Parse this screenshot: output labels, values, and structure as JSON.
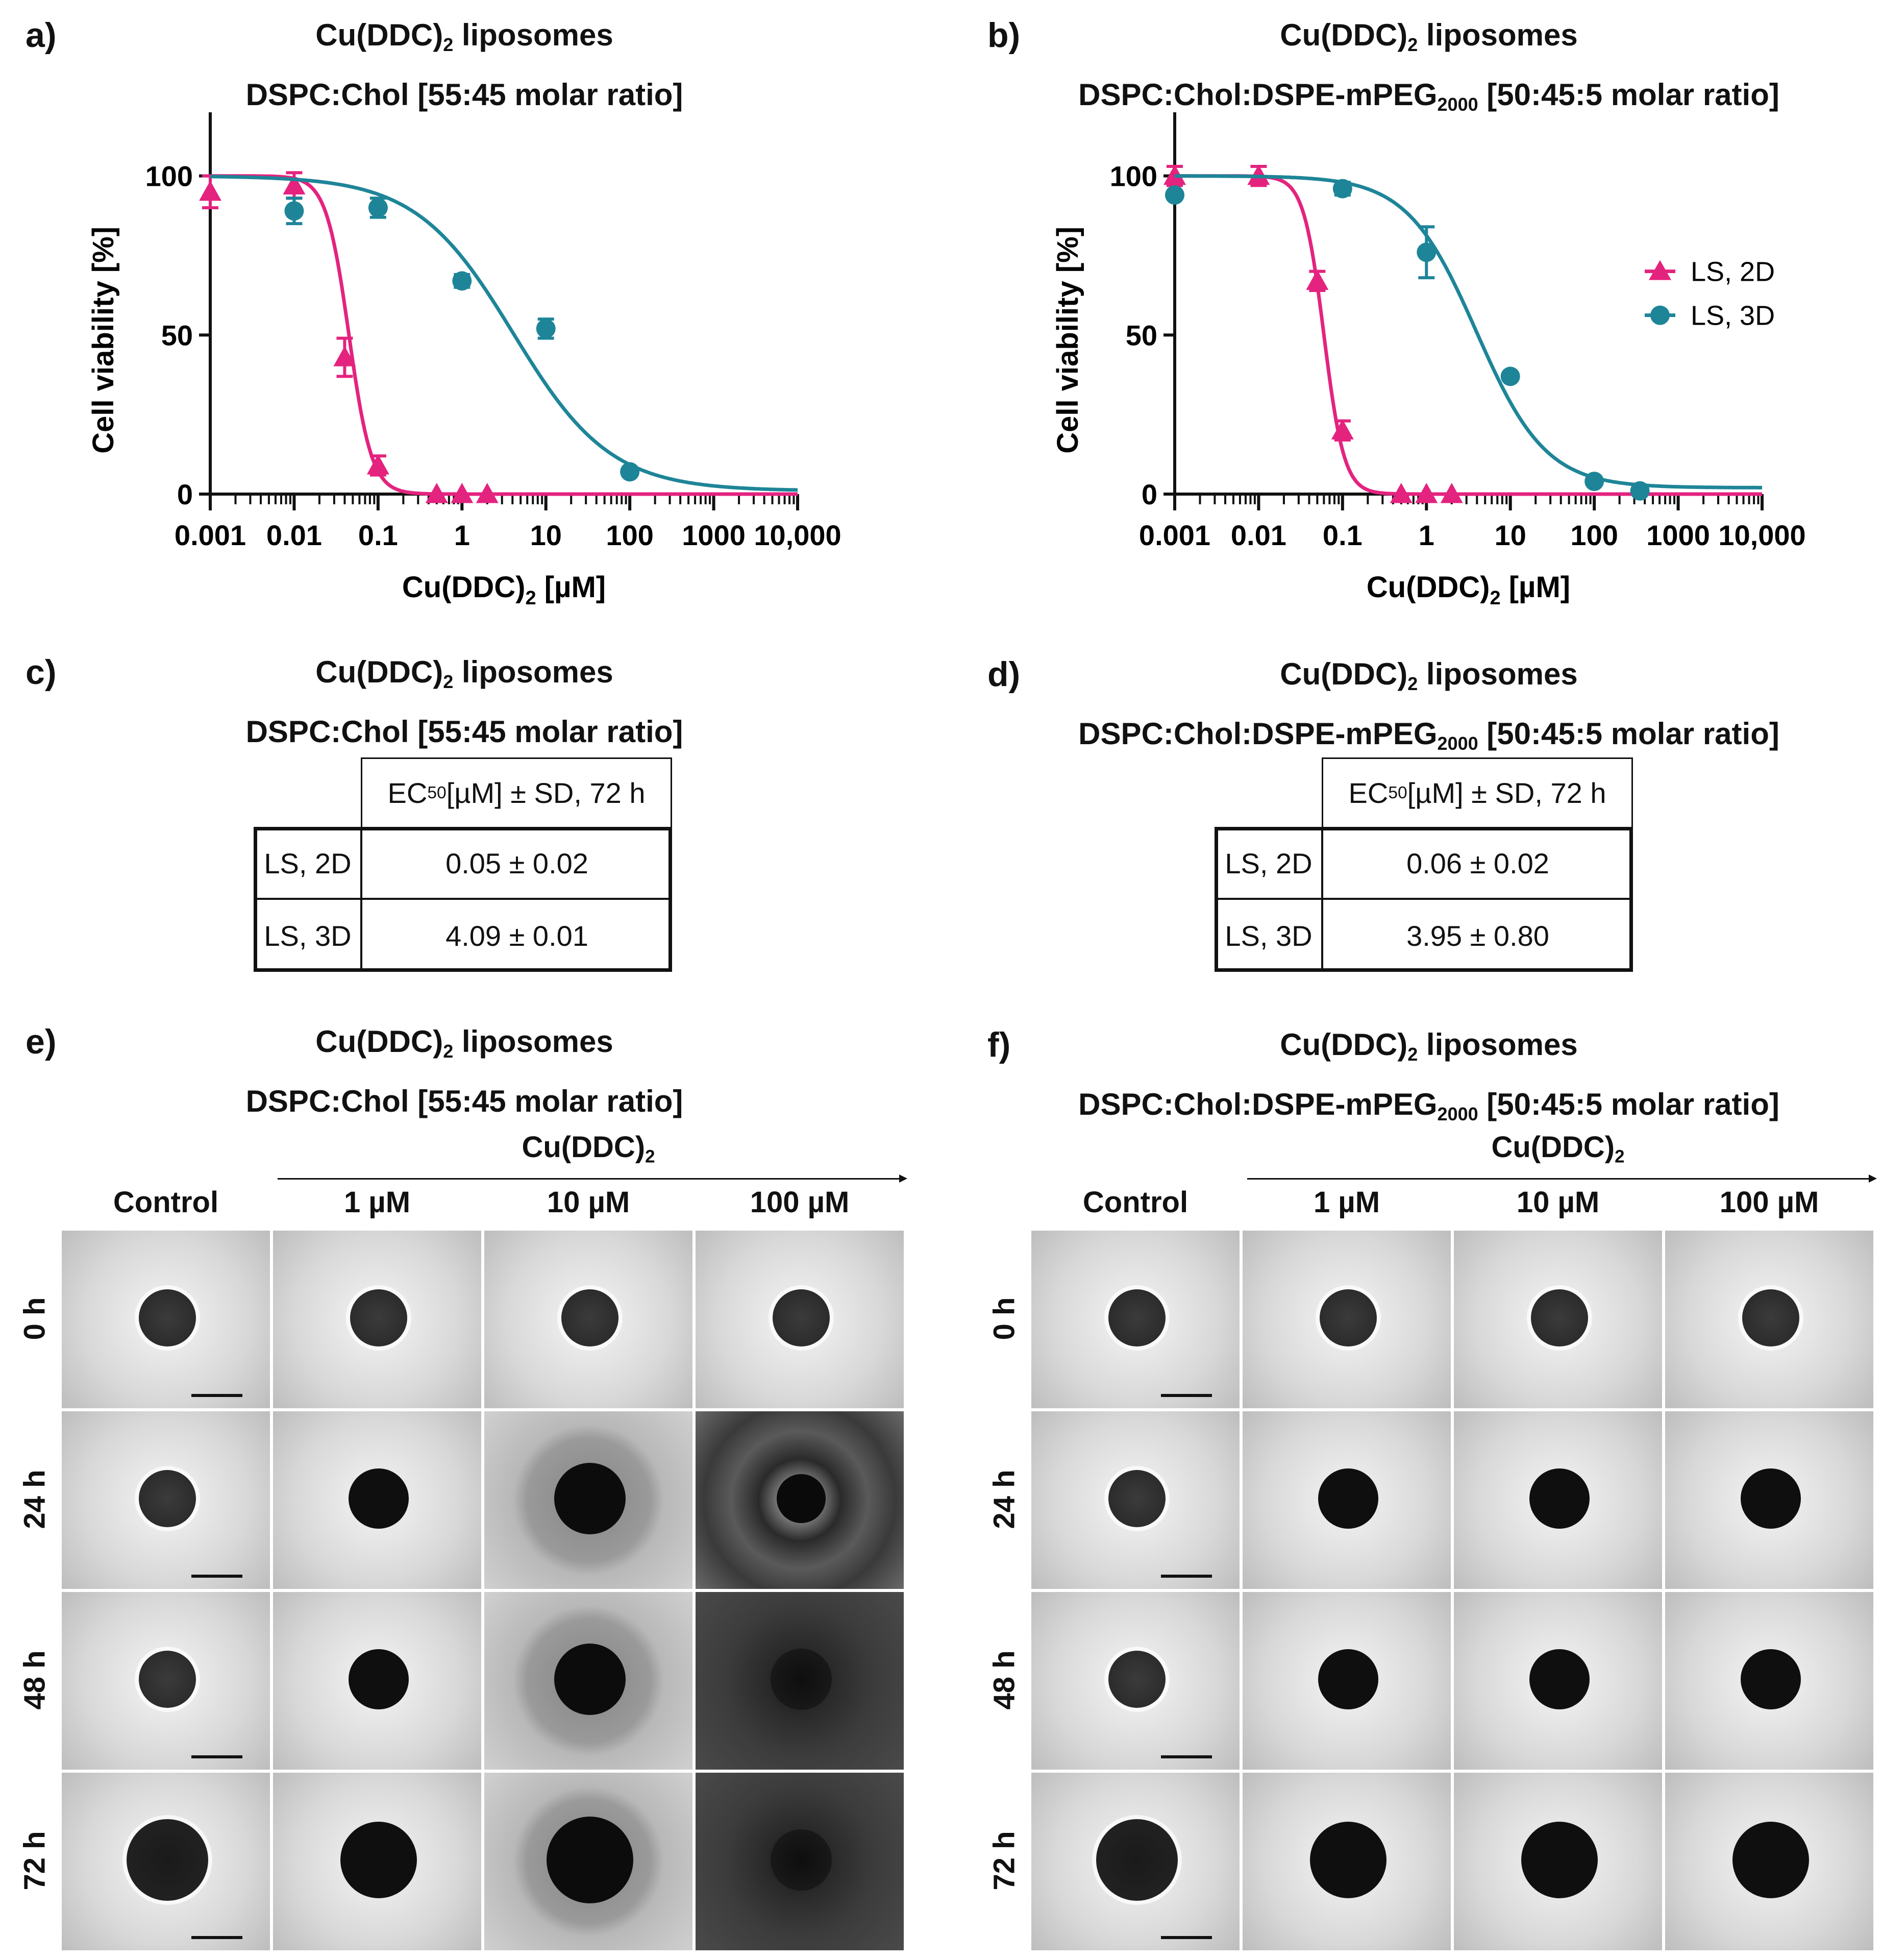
{
  "panels": {
    "a": {
      "letter": "a)",
      "title1": "Cu(DDC)",
      "title1_sub": "2",
      "title1_rest": " liposomes",
      "title2": "DSPC:Chol [55:45 molar ratio]"
    },
    "b": {
      "letter": "b)",
      "title1": "Cu(DDC)",
      "title1_sub": "2",
      "title1_rest": " liposomes",
      "title2a": "DSPC:Chol:DSPE-mPEG",
      "title2_sub": "2000",
      "title2b": " [50:45:5 molar ratio]"
    },
    "c": {
      "letter": "c)",
      "title1": "Cu(DDC)",
      "title1_sub": "2",
      "title1_rest": " liposomes",
      "title2": "DSPC:Chol [55:45 molar ratio]"
    },
    "d": {
      "letter": "d)",
      "title1": "Cu(DDC)",
      "title1_sub": "2",
      "title1_rest": " liposomes",
      "title2a": "DSPC:Chol:DSPE-mPEG",
      "title2_sub": "2000",
      "title2b": " [50:45:5 molar ratio]"
    },
    "e": {
      "letter": "e)",
      "title1": "Cu(DDC)",
      "title1_sub": "2",
      "title1_rest": " liposomes",
      "title2": "DSPC:Chol [55:45 molar ratio]"
    },
    "f": {
      "letter": "f)",
      "title1": "Cu(DDC)",
      "title1_sub": "2",
      "title1_rest": " liposomes",
      "title2a": "DSPC:Chol:DSPE-mPEG",
      "title2_sub": "2000",
      "title2b": " [50:45:5 molar ratio]"
    }
  },
  "colors": {
    "ls2d": "#e4237f",
    "ls3d": "#1e8598"
  },
  "chart_data": [
    {
      "id": "a",
      "type": "scatter",
      "x_scale": "log",
      "xlim": [
        0.001,
        10000
      ],
      "ylim": [
        0,
        120
      ],
      "xticks": [
        "0.001",
        "0.01",
        "0.1",
        "1",
        "10",
        "100",
        "1000",
        "10,000"
      ],
      "yticks": [
        "0",
        "50",
        "100"
      ],
      "xlabel": "Cu(DDC)",
      "xlabel_sub": "2",
      "xlabel_rest": " [µM]",
      "ylabel": "Cell viability [%]",
      "series": [
        {
          "name": "LS, 2D",
          "marker": "triangle",
          "color": "#e4237f",
          "ec50": 0.045,
          "hill": 3.2,
          "top": 100,
          "bottom": 0,
          "points": [
            {
              "x": 0.001,
              "y": 95,
              "err": 5
            },
            {
              "x": 0.01,
              "y": 97,
              "err": 4
            },
            {
              "x": 0.04,
              "y": 43,
              "err": 6
            },
            {
              "x": 0.1,
              "y": 9,
              "err": 3
            },
            {
              "x": 0.5,
              "y": 0,
              "err": 0
            },
            {
              "x": 1,
              "y": 0,
              "err": 0
            },
            {
              "x": 2,
              "y": 0,
              "err": 0
            }
          ]
        },
        {
          "name": "LS, 3D",
          "marker": "circle",
          "color": "#1e8598",
          "ec50": 4.09,
          "hill": 0.75,
          "top": 100,
          "bottom": 1,
          "points": [
            {
              "x": 0.01,
              "y": 89,
              "err": 4
            },
            {
              "x": 0.1,
              "y": 90,
              "err": 3
            },
            {
              "x": 1,
              "y": 67,
              "err": 2
            },
            {
              "x": 10,
              "y": 52,
              "err": 3
            },
            {
              "x": 100,
              "y": 7,
              "err": 0
            }
          ]
        }
      ]
    },
    {
      "id": "b",
      "type": "scatter",
      "x_scale": "log",
      "xlim": [
        0.001,
        10000
      ],
      "ylim": [
        0,
        120
      ],
      "xticks": [
        "0.001",
        "0.01",
        "0.1",
        "1",
        "10",
        "100",
        "1000",
        "10,000"
      ],
      "yticks": [
        "0",
        "50",
        "100"
      ],
      "xlabel": "Cu(DDC)",
      "xlabel_sub": "2",
      "xlabel_rest": " [µM]",
      "ylabel": "Cell viability [%]",
      "legend": "right",
      "series": [
        {
          "name": "LS, 2D",
          "marker": "triangle",
          "color": "#e4237f",
          "ec50": 0.06,
          "hill": 3.6,
          "top": 100,
          "bottom": 0,
          "points": [
            {
              "x": 0.001,
              "y": 100,
              "err": 3
            },
            {
              "x": 0.01,
              "y": 100,
              "err": 3
            },
            {
              "x": 0.05,
              "y": 67,
              "err": 3
            },
            {
              "x": 0.1,
              "y": 20,
              "err": 3
            },
            {
              "x": 0.5,
              "y": 0,
              "err": 0
            },
            {
              "x": 1,
              "y": 0,
              "err": 0
            },
            {
              "x": 2,
              "y": 0,
              "err": 0
            }
          ]
        },
        {
          "name": "LS, 3D",
          "marker": "circle",
          "color": "#1e8598",
          "ec50": 3.95,
          "hill": 1.05,
          "top": 100,
          "bottom": 2,
          "points": [
            {
              "x": 0.001,
              "y": 94,
              "err": 0
            },
            {
              "x": 0.1,
              "y": 96,
              "err": 2
            },
            {
              "x": 1,
              "y": 76,
              "err": 8
            },
            {
              "x": 10,
              "y": 37,
              "err": 0
            },
            {
              "x": 100,
              "y": 4,
              "err": 0
            },
            {
              "x": 350,
              "y": 1,
              "err": 0
            }
          ]
        }
      ]
    }
  ],
  "tables": {
    "c": {
      "header": "EC",
      "header_sub": "50",
      "header_rest": " [µM] ± SD, 72 h",
      "rows": [
        {
          "label": "LS, 2D",
          "value": "0.05 ± 0.02"
        },
        {
          "label": "LS, 3D",
          "value": "4.09 ± 0.01"
        }
      ]
    },
    "d": {
      "header": "EC",
      "header_sub": "50",
      "header_rest": " [µM] ± SD, 72 h",
      "rows": [
        {
          "label": "LS, 2D",
          "value": "0.06 ± 0.02"
        },
        {
          "label": "LS, 3D",
          "value": "3.95 ± 0.80"
        }
      ]
    }
  },
  "images": {
    "treatment_label": "Cu(DDC)",
    "treatment_sub": "2",
    "columns": [
      "Control",
      "1 µM",
      "10 µM",
      "100 µM"
    ],
    "rows": [
      "0 h",
      "24 h",
      "48 h",
      "72 h"
    ]
  }
}
